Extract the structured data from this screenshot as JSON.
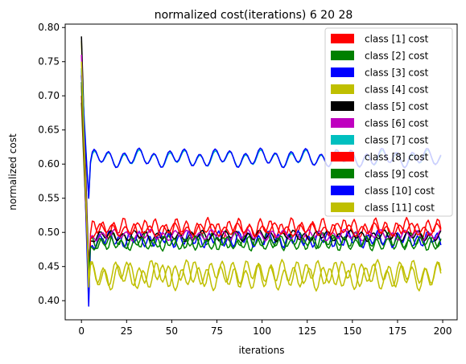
{
  "chart_data": {
    "type": "line",
    "title": "normalized cost(iterations) 6 20 28",
    "xlabel": "iterations",
    "ylabel": "normalized cost",
    "xlim": [
      -9,
      208
    ],
    "ylim": [
      0.372,
      0.805
    ],
    "xticks": [
      0,
      25,
      50,
      75,
      100,
      125,
      150,
      175,
      200
    ],
    "yticks": [
      0.4,
      0.45,
      0.5,
      0.55,
      0.6,
      0.65,
      0.7,
      0.75,
      0.8
    ],
    "grid": false,
    "legend_position": "top-right",
    "x_range": [
      0,
      199
    ],
    "series": [
      {
        "name": "class [1] cost",
        "color": "#ff0000",
        "start": 0.715,
        "dip": 0.42,
        "base": 0.506,
        "amp": 0.011,
        "period": 5.8,
        "phase": 0.4
      },
      {
        "name": "class [2] cost",
        "color": "#008000",
        "start": 0.69,
        "dip": 0.43,
        "base": 0.487,
        "amp": 0.01,
        "period": 6.1,
        "phase": 1.3
      },
      {
        "name": "class [3] cost",
        "color": "#0000ff",
        "start": 0.74,
        "dip": 0.392,
        "base": 0.49,
        "amp": 0.009,
        "period": 5.5,
        "phase": 2.1
      },
      {
        "name": "class [4] cost",
        "color": "#bfbf00",
        "start": 0.78,
        "dip": 0.42,
        "base": 0.436,
        "amp": 0.015,
        "period": 7.1,
        "phase": 0.9
      },
      {
        "name": "class [5] cost",
        "color": "#000000",
        "start": 0.787,
        "dip": 0.45,
        "base": 0.495,
        "amp": 0.006,
        "period": 6.3,
        "phase": 2.6
      },
      {
        "name": "class [6] cost",
        "color": "#bf00bf",
        "start": 0.76,
        "dip": 0.44,
        "base": 0.496,
        "amp": 0.006,
        "period": 6.7,
        "phase": 1.7
      },
      {
        "name": "class [7] cost",
        "color": "#00bfbf",
        "start": 0.74,
        "dip": 0.55,
        "base": 0.608,
        "amp": 0.009,
        "period": 8.4,
        "phase": 0.2
      },
      {
        "name": "class [8] cost",
        "color": "#ff0000",
        "start": 0.7,
        "dip": 0.44,
        "base": 0.504,
        "amp": 0.007,
        "period": 6.9,
        "phase": 3.0
      },
      {
        "name": "class [9] cost",
        "color": "#008000",
        "start": 0.72,
        "dip": 0.44,
        "base": 0.485,
        "amp": 0.007,
        "period": 5.9,
        "phase": 2.4
      },
      {
        "name": "class [10] cost",
        "color": "#0000ff",
        "start": 0.73,
        "dip": 0.55,
        "base": 0.609,
        "amp": 0.01,
        "period": 8.4,
        "phase": 0.3
      },
      {
        "name": "class [11] cost",
        "color": "#bfbf00",
        "start": 0.75,
        "dip": 0.43,
        "base": 0.44,
        "amp": 0.014,
        "period": 6.6,
        "phase": 1.1
      }
    ]
  }
}
